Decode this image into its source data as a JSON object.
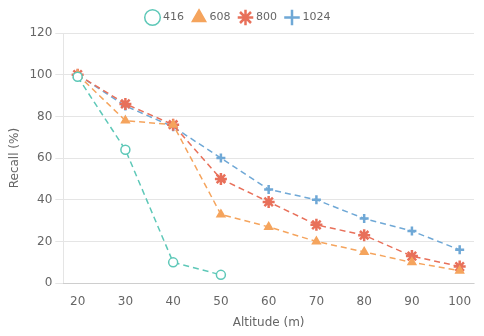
{
  "chart_data": {
    "type": "line",
    "xlabel": "Altitude (m)",
    "ylabel": "Recall (%)",
    "x": [
      20,
      30,
      40,
      50,
      60,
      70,
      80,
      90,
      100
    ],
    "xlim": [
      17,
      103
    ],
    "ylim": [
      0,
      120
    ],
    "xticks": [
      20,
      30,
      40,
      50,
      60,
      70,
      80,
      90,
      100
    ],
    "yticks": [
      0,
      20,
      40,
      60,
      80,
      100,
      120
    ],
    "series": [
      {
        "name": "416",
        "color": "#5ec8b8",
        "marker": "circle-open",
        "line_style": "dashed",
        "values": [
          99,
          64,
          10,
          4,
          null,
          null,
          null,
          null,
          null
        ]
      },
      {
        "name": "608",
        "color": "#f5a45d",
        "marker": "triangle",
        "line_style": "dashed",
        "values": [
          100,
          78,
          76,
          33,
          27,
          20,
          15,
          10,
          6
        ]
      },
      {
        "name": "800",
        "color": "#e8705a",
        "marker": "star-open",
        "line_style": "dashed",
        "values": [
          100,
          86,
          76,
          50,
          39,
          28,
          23,
          13,
          8
        ]
      },
      {
        "name": "1024",
        "color": "#6fa8d6",
        "marker": "plus",
        "line_style": "dashed",
        "values": [
          100,
          85,
          75,
          60,
          45,
          40,
          31,
          25,
          16
        ]
      }
    ],
    "grid": "y",
    "legend": "top"
  }
}
